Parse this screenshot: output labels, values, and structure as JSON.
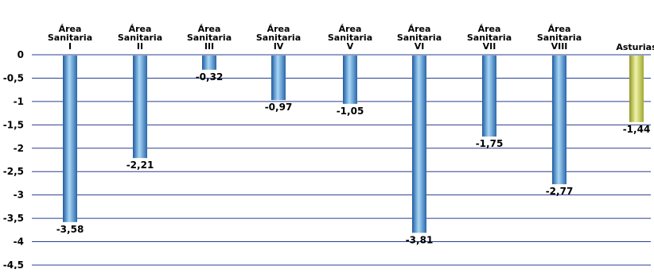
{
  "chart_data": {
    "type": "bar",
    "orientation": "vertical",
    "categories": [
      [
        "Área",
        "Sanitaria",
        "I"
      ],
      [
        "Área",
        "Sanitaria",
        "II"
      ],
      [
        "Área",
        "Sanitaria",
        "III"
      ],
      [
        "Área",
        "Sanitaria",
        "IV"
      ],
      [
        "Área",
        "Sanitaria",
        "V"
      ],
      [
        "Área",
        "Sanitaria",
        "VI"
      ],
      [
        "Área",
        "Sanitaria",
        "VII"
      ],
      [
        "Área",
        "Sanitaria",
        "VIII"
      ],
      [
        "Asturias"
      ]
    ],
    "values": [
      -3.58,
      -2.21,
      -0.32,
      -0.97,
      -1.05,
      -3.81,
      -1.75,
      -2.77,
      -1.44
    ],
    "value_labels": [
      "-3,58",
      "-2,21",
      "-0,32",
      "-0,97",
      "-1,05",
      "-3,81",
      "-1,75",
      "-2,77",
      "-1,44"
    ],
    "yticks": [
      0,
      -0.5,
      -1,
      -1.5,
      -2,
      -2.5,
      -3,
      -3.5,
      -4,
      -4.5
    ],
    "ytick_labels": [
      "0",
      "-0,5",
      "-1",
      "-1,5",
      "-2",
      "-2,5",
      "-3",
      "-3,5",
      "-4",
      "-4,5"
    ],
    "ylim": [
      -4.5,
      0
    ],
    "grid": true,
    "category_labels_position": "top",
    "colors": {
      "bar": "#2f6fb3",
      "bar_highlight": "#9fd0f2",
      "highlight_bar": "#a8ae33",
      "highlight_bar_light": "#eef0a0",
      "grid": "#2a3f8f"
    },
    "highlight_index": 8
  }
}
